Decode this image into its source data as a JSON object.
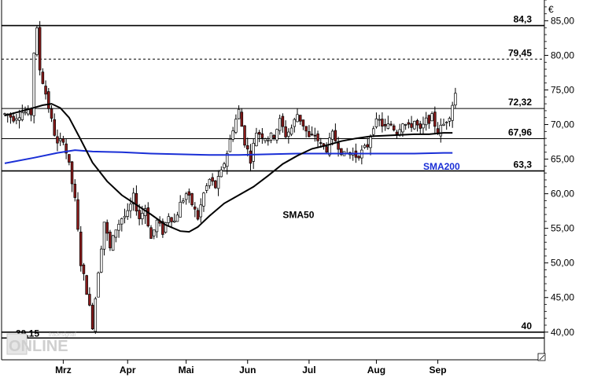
{
  "chart_data": {
    "type": "candlestick",
    "currency_symbol": "€",
    "ylim": [
      36,
      88
    ],
    "y_ticks": [
      40,
      45,
      50,
      55,
      60,
      65,
      70,
      75,
      80,
      85
    ],
    "y_tick_labels": [
      "40,00",
      "45,00",
      "50,00",
      "55,00",
      "60,00",
      "65,00",
      "70,00",
      "75,00",
      "80,00",
      "85,00"
    ],
    "x_ticks": [
      {
        "label": "Mrz",
        "index": 20
      },
      {
        "label": "Apr",
        "index": 42
      },
      {
        "label": "Mai",
        "index": 62
      },
      {
        "label": "Jun",
        "index": 83
      },
      {
        "label": "Jul",
        "index": 104
      },
      {
        "label": "Aug",
        "index": 127
      },
      {
        "label": "Sep",
        "index": 148
      }
    ],
    "n_points": 160,
    "levels": [
      {
        "value": 84.3,
        "label": "84,3",
        "style": "solid",
        "width": 1.6
      },
      {
        "value": 79.45,
        "label": "79,45",
        "style": "dashed",
        "width": 1
      },
      {
        "value": 72.32,
        "label": "72,32",
        "style": "solid",
        "width": 1
      },
      {
        "value": 67.96,
        "label": "67,96",
        "style": "solid",
        "width": 1
      },
      {
        "value": 63.3,
        "label": "63,3",
        "style": "solid",
        "width": 1.6
      },
      {
        "value": 40,
        "label": "40",
        "style": "solid",
        "width": 1.6
      },
      {
        "value": 39.15,
        "label": "39,15",
        "style": "solid",
        "width": 1.6
      }
    ],
    "sma_labels": [
      {
        "text": "SMA200",
        "color": "#1a2fd6",
        "x_index": 143,
        "y": 63.5
      },
      {
        "text": "SMA50",
        "color": "#000000",
        "x_index": 95,
        "y": 56.5
      }
    ],
    "anchors": [
      [
        0,
        71.5
      ],
      [
        3,
        71.0
      ],
      [
        6,
        71.8
      ],
      [
        9,
        71.6
      ],
      [
        10,
        80.5
      ],
      [
        11,
        83.5
      ],
      [
        12,
        78.0
      ],
      [
        14,
        74.5
      ],
      [
        16,
        70.5
      ],
      [
        18,
        67.0
      ],
      [
        20,
        68.0
      ],
      [
        22,
        64.0
      ],
      [
        24,
        59.0
      ],
      [
        26,
        50.0
      ],
      [
        28,
        46.0
      ],
      [
        30,
        41.0
      ],
      [
        32,
        49.0
      ],
      [
        34,
        56.0
      ],
      [
        36,
        52.0
      ],
      [
        38,
        55.0
      ],
      [
        40,
        56.5
      ],
      [
        42,
        57.0
      ],
      [
        44,
        59.5
      ],
      [
        46,
        56.5
      ],
      [
        48,
        58.0
      ],
      [
        50,
        53.5
      ],
      [
        52,
        56.0
      ],
      [
        54,
        54.5
      ],
      [
        56,
        57.0
      ],
      [
        58,
        56.0
      ],
      [
        60,
        58.5
      ],
      [
        62,
        60.0
      ],
      [
        64,
        58.5
      ],
      [
        66,
        56.5
      ],
      [
        68,
        60.0
      ],
      [
        70,
        62.0
      ],
      [
        72,
        61.0
      ],
      [
        74,
        63.0
      ],
      [
        76,
        66.0
      ],
      [
        78,
        69.5
      ],
      [
        80,
        72.0
      ],
      [
        82,
        67.5
      ],
      [
        84,
        65.0
      ],
      [
        86,
        69.0
      ],
      [
        88,
        68.5
      ],
      [
        90,
        68.0
      ],
      [
        92,
        68.5
      ],
      [
        94,
        70.5
      ],
      [
        96,
        68.5
      ],
      [
        98,
        69.5
      ],
      [
        100,
        71.5
      ],
      [
        102,
        70.0
      ],
      [
        104,
        68.0
      ],
      [
        106,
        68.5
      ],
      [
        108,
        67.0
      ],
      [
        110,
        66.5
      ],
      [
        112,
        68.5
      ],
      [
        114,
        67.0
      ],
      [
        116,
        65.5
      ],
      [
        118,
        66.0
      ],
      [
        120,
        65.5
      ],
      [
        122,
        66.0
      ],
      [
        124,
        67.0
      ],
      [
        126,
        70.0
      ],
      [
        128,
        70.5
      ],
      [
        130,
        69.5
      ],
      [
        132,
        70.0
      ],
      [
        134,
        69.0
      ],
      [
        136,
        70.5
      ],
      [
        138,
        69.5
      ],
      [
        140,
        70.5
      ],
      [
        142,
        69.0
      ],
      [
        144,
        70.5
      ],
      [
        146,
        71.0
      ],
      [
        148,
        69.0
      ],
      [
        150,
        70.0
      ],
      [
        152,
        71.5
      ],
      [
        154,
        74.5
      ]
    ],
    "sma50": [
      [
        0,
        71.3
      ],
      [
        8,
        72.2
      ],
      [
        13,
        72.8
      ],
      [
        16,
        73.0
      ],
      [
        19,
        72.4
      ],
      [
        22,
        71.0
      ],
      [
        26,
        67.8
      ],
      [
        30,
        64.5
      ],
      [
        35,
        61.8
      ],
      [
        40,
        59.8
      ],
      [
        45,
        58.4
      ],
      [
        50,
        57.0
      ],
      [
        55,
        55.5
      ],
      [
        60,
        54.6
      ],
      [
        63,
        54.5
      ],
      [
        66,
        55.2
      ],
      [
        70,
        56.8
      ],
      [
        75,
        58.6
      ],
      [
        80,
        59.8
      ],
      [
        85,
        61.0
      ],
      [
        90,
        62.6
      ],
      [
        95,
        64.3
      ],
      [
        100,
        65.5
      ],
      [
        105,
        66.5
      ],
      [
        110,
        67.0
      ],
      [
        115,
        67.6
      ],
      [
        120,
        68.0
      ],
      [
        125,
        68.3
      ],
      [
        130,
        68.4
      ],
      [
        135,
        68.5
      ],
      [
        140,
        68.6
      ],
      [
        145,
        68.6
      ],
      [
        150,
        68.8
      ],
      [
        153,
        68.8
      ]
    ],
    "sma200": [
      [
        0,
        64.4
      ],
      [
        10,
        65.2
      ],
      [
        18,
        65.9
      ],
      [
        24,
        66.3
      ],
      [
        30,
        66.1
      ],
      [
        40,
        66.0
      ],
      [
        50,
        65.8
      ],
      [
        60,
        65.7
      ],
      [
        70,
        65.6
      ],
      [
        80,
        65.6
      ],
      [
        90,
        65.7
      ],
      [
        100,
        65.8
      ],
      [
        110,
        65.8
      ],
      [
        120,
        65.8
      ],
      [
        130,
        65.8
      ],
      [
        140,
        65.8
      ],
      [
        150,
        65.9
      ],
      [
        153,
        65.9
      ]
    ]
  },
  "logo": {
    "brand": "ONLINE",
    "tagline": "tradesignal"
  },
  "colors": {
    "up_candle": "#ffffff",
    "down_candle": "#8b1a1a",
    "candle_outline": "#000000",
    "sma50": "#000000",
    "sma200": "#1a2fd6",
    "grid": "#000000"
  }
}
